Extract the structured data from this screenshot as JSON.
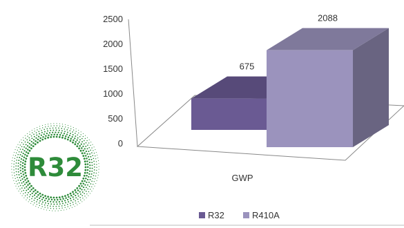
{
  "chart_data": {
    "type": "bar",
    "categories": [
      "GWP"
    ],
    "series": [
      {
        "name": "R32",
        "values": [
          675
        ],
        "color": "#6a5a93"
      },
      {
        "name": "R410A",
        "values": [
          2088
        ],
        "color": "#9b93bd"
      }
    ],
    "title": "",
    "xlabel": "",
    "ylabel": "",
    "ylim": [
      0,
      2500
    ],
    "yticks": [
      0,
      500,
      1000,
      1500,
      2000,
      2500
    ],
    "legend": "bottom",
    "grid": false,
    "projection": "3d"
  },
  "badge": {
    "text": "R32",
    "color": "#2e8b3a"
  }
}
